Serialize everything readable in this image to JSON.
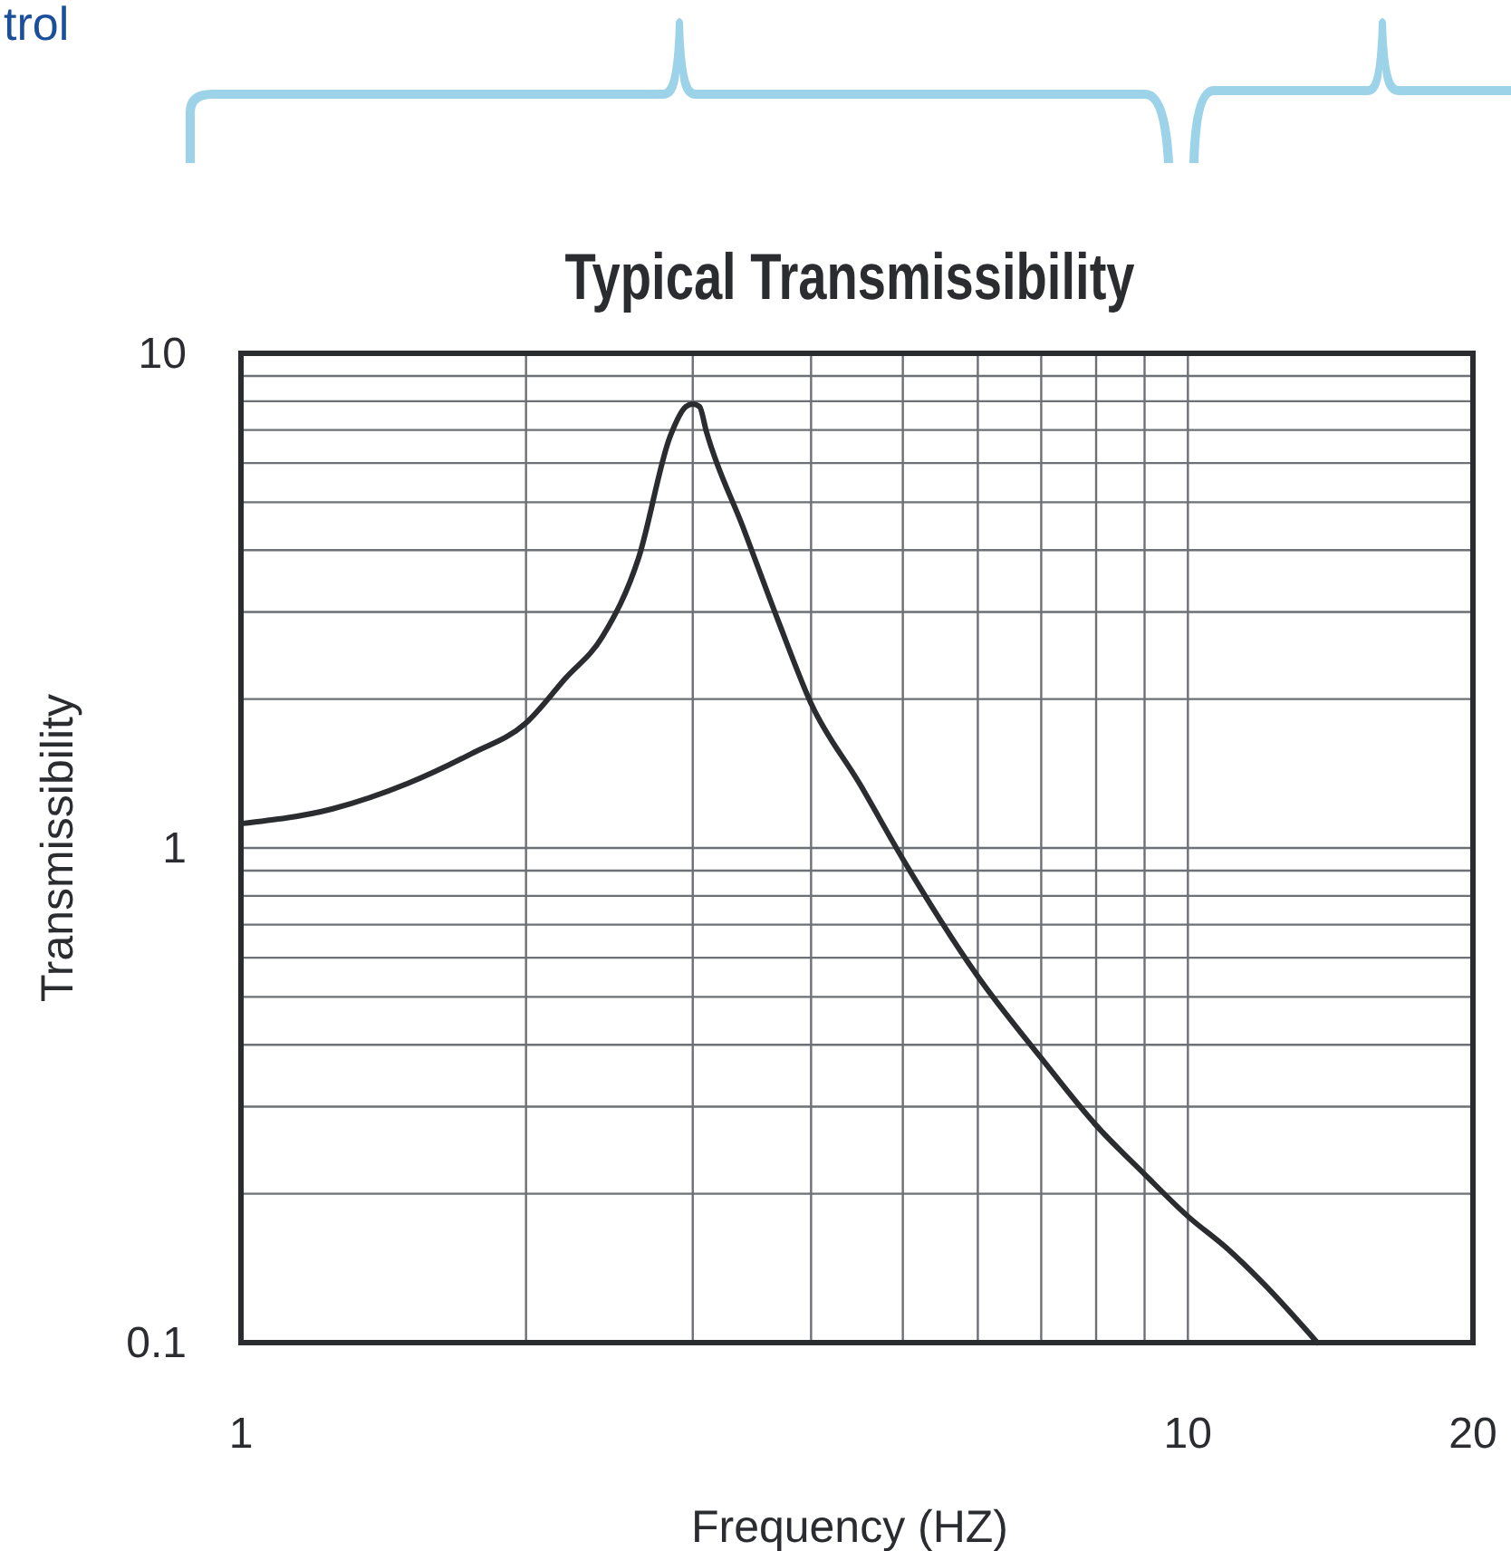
{
  "chart_data": {
    "type": "line",
    "title": "Typical Transmissibility",
    "xlabel": "Frequency (HZ)",
    "ylabel": "Transmissibility",
    "annotations": [
      "trol"
    ],
    "log": "xy",
    "grid": true,
    "marker": "none",
    "line_style": "solid",
    "xlim": [
      1,
      20
    ],
    "ylim": [
      0.1,
      10
    ],
    "xticks": [
      1,
      {
        "value": 2,
        "label": null
      },
      {
        "value": 3,
        "label": null
      },
      {
        "value": 4,
        "label": null
      },
      {
        "value": 5,
        "label": null
      },
      {
        "value": 6,
        "label": null
      },
      {
        "value": 7,
        "label": null
      },
      {
        "value": 8,
        "label": null
      },
      {
        "value": 9,
        "label": null
      },
      10,
      20
    ],
    "yticks": [
      0.1,
      {
        "value": 0.2,
        "label": null
      },
      {
        "value": 0.3,
        "label": null
      },
      {
        "value": 0.4,
        "label": null
      },
      {
        "value": 0.5,
        "label": null
      },
      {
        "value": 0.6,
        "label": null
      },
      {
        "value": 0.7,
        "label": null
      },
      {
        "value": 0.8,
        "label": null
      },
      {
        "value": 0.9,
        "label": null
      },
      1,
      {
        "value": 2,
        "label": null
      },
      {
        "value": 3,
        "label": null
      },
      {
        "value": 4,
        "label": null
      },
      {
        "value": 5,
        "label": null
      },
      {
        "value": 6,
        "label": null
      },
      {
        "value": 7,
        "label": null
      },
      {
        "value": 8,
        "label": null
      },
      {
        "value": 9,
        "label": null
      },
      10
    ],
    "series": [
      {
        "color": "#2a2c30",
        "x": [
          1,
          1.25,
          1.5,
          1.75,
          2,
          2.2,
          2.41,
          2.63,
          2.84,
          2.95,
          3.0,
          3.05,
          3.1,
          3.39,
          3.7,
          4,
          4.5,
          5,
          6,
          7,
          8,
          9,
          10,
          11,
          12,
          13.7
        ],
        "values": [
          1.12,
          1.2,
          1.35,
          1.55,
          1.79,
          2.2,
          2.68,
          3.86,
          6.8,
          7.8,
          7.9,
          7.8,
          6.96,
          4.45,
          2.85,
          1.96,
          1.35,
          0.95,
          0.55,
          0.376,
          0.275,
          0.219,
          0.18,
          0.155,
          0.132,
          0.1
        ]
      }
    ]
  }
}
